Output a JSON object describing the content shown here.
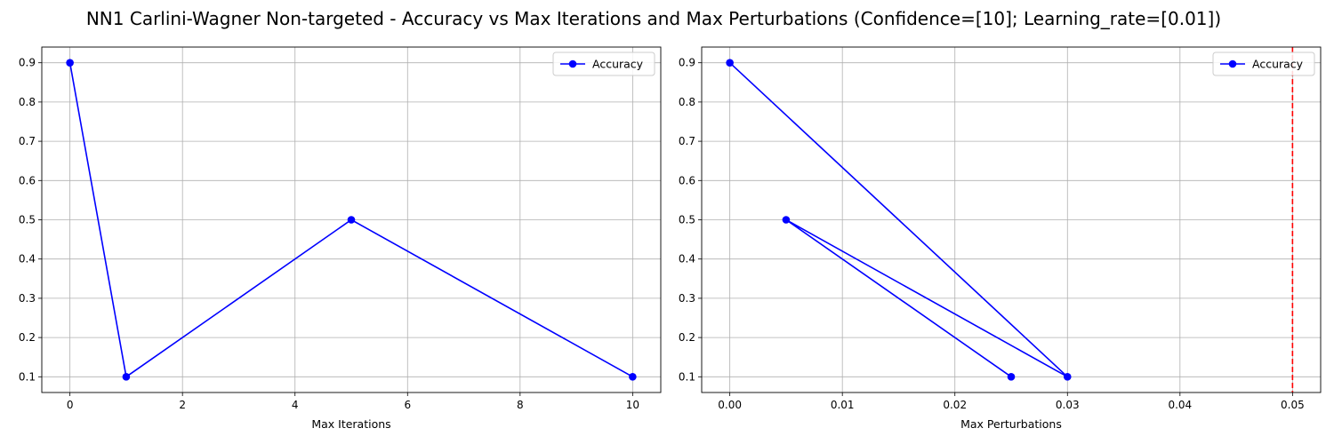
{
  "figure": {
    "title": "NN1 Carlini-Wagner Non-targeted - Accuracy vs Max Iterations and Max Perturbations (Confidence=[10]; Learning_rate=[0.01])"
  },
  "chart_data": [
    {
      "type": "line",
      "xlabel": "Max Iterations",
      "ylabel": "",
      "xlim": [
        -0.5,
        10.5
      ],
      "ylim": [
        0.06,
        0.94
      ],
      "xticks": [
        0,
        2,
        4,
        6,
        8,
        10
      ],
      "xtick_labels": [
        "0",
        "2",
        "4",
        "6",
        "8",
        "10"
      ],
      "yticks": [
        0.1,
        0.2,
        0.3,
        0.4,
        0.5,
        0.6,
        0.7,
        0.8,
        0.9
      ],
      "ytick_labels": [
        "0.1",
        "0.2",
        "0.3",
        "0.4",
        "0.5",
        "0.6",
        "0.7",
        "0.8",
        "0.9"
      ],
      "grid": true,
      "legend": "top-right",
      "series": [
        {
          "name": "Accuracy",
          "color": "#0000ff",
          "marker": "circle",
          "x": [
            0,
            1,
            5,
            10
          ],
          "y": [
            0.9,
            0.1,
            0.5,
            0.1
          ]
        }
      ],
      "vlines": []
    },
    {
      "type": "line",
      "xlabel": "Max Perturbations",
      "ylabel": "",
      "xlim": [
        -0.0025,
        0.0525
      ],
      "ylim": [
        0.06,
        0.94
      ],
      "xticks": [
        0,
        0.01,
        0.02,
        0.03,
        0.04,
        0.05
      ],
      "xtick_labels": [
        "0.00",
        "0.01",
        "0.02",
        "0.03",
        "0.04",
        "0.05"
      ],
      "yticks": [
        0.1,
        0.2,
        0.3,
        0.4,
        0.5,
        0.6,
        0.7,
        0.8,
        0.9
      ],
      "ytick_labels": [
        "0.1",
        "0.2",
        "0.3",
        "0.4",
        "0.5",
        "0.6",
        "0.7",
        "0.8",
        "0.9"
      ],
      "grid": true,
      "legend": "top-right",
      "series": [
        {
          "name": "Accuracy",
          "color": "#0000ff",
          "marker": "circle",
          "x": [
            0.0,
            0.03,
            0.005,
            0.025
          ],
          "y": [
            0.9,
            0.1,
            0.5,
            0.1
          ]
        }
      ],
      "vlines": [
        {
          "x": 0.05,
          "color": "#ff0000",
          "style": "dashed"
        }
      ]
    }
  ]
}
